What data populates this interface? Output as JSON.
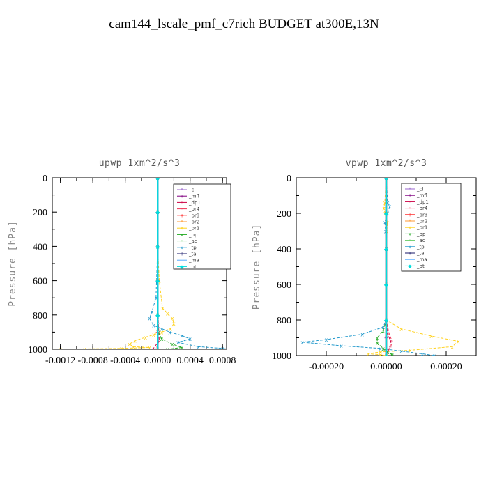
{
  "figure_title": "cam144_lscale_pmf_c7rich  BUDGET at300E,13N",
  "chart_data": [
    {
      "type": "line",
      "title": "upwp   1xm^2/s^3",
      "ylabel": "Pressure [hPa]",
      "xlabel": "",
      "ylim": [
        0,
        1000
      ],
      "y_inverted": true,
      "xlim": [
        -0.0013,
        0.00085
      ],
      "xticks": [
        -0.0012,
        -0.0008,
        -0.0004,
        0.0,
        0.0004,
        0.0008
      ],
      "xtick_labels": [
        "-0.0012",
        "-0.0008",
        "-0.0004",
        "0.0000",
        "0.0004",
        "0.0008"
      ],
      "yticks": [
        0,
        200,
        400,
        600,
        800,
        1000
      ],
      "ytick_labels": [
        "0",
        "200",
        "400",
        "600",
        "800",
        "1000"
      ],
      "legend": "top-right",
      "series": [
        {
          "name": "_cl",
          "color": "#9966cc",
          "marker": "*",
          "x": [
            0,
            0,
            0,
            0,
            0,
            0,
            0
          ],
          "y": [
            0,
            200,
            400,
            600,
            800,
            900,
            1000
          ]
        },
        {
          "name": "_mfl",
          "color": "#800080",
          "marker": "+",
          "x": [
            0,
            0,
            0,
            0,
            0,
            0,
            0
          ],
          "y": [
            0,
            200,
            400,
            600,
            800,
            900,
            1000
          ]
        },
        {
          "name": "_dp1",
          "color": "#cc0044",
          "marker": "o",
          "x": [
            0,
            0,
            0,
            0,
            0,
            2e-05,
            -6e-05
          ],
          "y": [
            0,
            200,
            400,
            600,
            800,
            950,
            1000
          ]
        },
        {
          "name": "_pr4",
          "color": "#ee3355",
          "marker": "o",
          "x": [
            0,
            0,
            0,
            0,
            1e-05,
            2e-05,
            -2e-05
          ],
          "y": [
            0,
            200,
            400,
            600,
            850,
            950,
            1000
          ]
        },
        {
          "name": "_pr3",
          "color": "#ff2222",
          "marker": "+",
          "x": [
            0,
            0,
            0,
            0,
            0,
            0,
            0
          ],
          "y": [
            0,
            200,
            400,
            600,
            800,
            900,
            1000
          ]
        },
        {
          "name": "_pr2",
          "color": "#ff9933",
          "marker": "*",
          "x": [
            0,
            0,
            0,
            0,
            0,
            0,
            0
          ],
          "y": [
            0,
            200,
            400,
            600,
            800,
            900,
            1000
          ]
        },
        {
          "name": "_pr1",
          "color": "#ffd21f",
          "marker": "x",
          "x": [
            0,
            0,
            0,
            2e-05,
            6e-05,
            0.00012,
            0.00018,
            0.0002,
            0.00016,
            5e-05,
            -5e-05,
            -0.00015,
            -0.00028,
            -0.00035,
            -0.0003,
            -0.0001,
            -0.00045,
            -0.0009,
            -0.0012
          ],
          "y": [
            0,
            200,
            400,
            600,
            760,
            790,
            820,
            850,
            880,
            900,
            915,
            930,
            950,
            970,
            985,
            990,
            995,
            998,
            1000
          ]
        },
        {
          "name": "_bp",
          "color": "#22aa22",
          "marker": "x",
          "x": [
            0,
            0,
            0,
            0,
            1e-05,
            5e-05,
            0.00018,
            0.0003,
            0.00012
          ],
          "y": [
            0,
            200,
            400,
            800,
            900,
            940,
            970,
            990,
            1000
          ]
        },
        {
          "name": "_ac",
          "color": "#66cc66",
          "marker": "o",
          "x": [
            0,
            0,
            0,
            0,
            0,
            0
          ],
          "y": [
            0,
            200,
            400,
            600,
            800,
            1000
          ]
        },
        {
          "name": "_tp",
          "color": "#2299cc",
          "marker": "x",
          "x": [
            0,
            0,
            0,
            -2e-05,
            -7e-05,
            -0.0001,
            -5e-05,
            5e-05,
            0.00015,
            0.0003,
            0.0004,
            0.00025,
            0.0005,
            0.0008,
            0.00082
          ],
          "y": [
            0,
            200,
            400,
            700,
            780,
            820,
            860,
            880,
            900,
            920,
            940,
            960,
            985,
            995,
            1000
          ]
        },
        {
          "name": "_ta",
          "color": "#1a1a6a",
          "marker": "+",
          "x": [
            0,
            0,
            0,
            0,
            0,
            0
          ],
          "y": [
            0,
            200,
            400,
            600,
            800,
            1000
          ]
        },
        {
          "name": "_ma",
          "color": "#55aaff",
          "marker": "-",
          "x": [
            0,
            0,
            0,
            0,
            0,
            0
          ],
          "y": [
            0,
            200,
            400,
            600,
            800,
            1000
          ]
        },
        {
          "name": "_bt",
          "color": "#00dddd",
          "marker": "D",
          "x": [
            0,
            0,
            0,
            0,
            0,
            0
          ],
          "y": [
            0,
            200,
            400,
            600,
            800,
            1000
          ]
        }
      ]
    },
    {
      "type": "line",
      "title": "vpwp   1xm^2/s^3",
      "ylabel": "Pressure [hPa]",
      "xlabel": "",
      "ylim": [
        0,
        1000
      ],
      "y_inverted": true,
      "xlim": [
        -0.0003,
        0.0003
      ],
      "xticks": [
        -0.0002,
        0.0,
        0.0002
      ],
      "xtick_labels": [
        "-0.00020",
        "0.00000",
        "0.00020"
      ],
      "yticks": [
        0,
        200,
        400,
        600,
        800,
        1000
      ],
      "ytick_labels": [
        "0",
        "200",
        "400",
        "600",
        "800",
        "1000"
      ],
      "legend": "top-right",
      "series": [
        {
          "name": "_cl",
          "color": "#9966cc",
          "marker": "*",
          "x": [
            0,
            0,
            0,
            0,
            0,
            0,
            0
          ],
          "y": [
            0,
            200,
            400,
            600,
            800,
            900,
            1000
          ]
        },
        {
          "name": "_mfl",
          "color": "#800080",
          "marker": "+",
          "x": [
            0,
            0,
            0,
            0,
            0,
            0,
            0
          ],
          "y": [
            0,
            200,
            400,
            600,
            800,
            900,
            1000
          ]
        },
        {
          "name": "_dp1",
          "color": "#cc0044",
          "marker": "o",
          "x": [
            0,
            0,
            0,
            0,
            5e-06,
            1.5e-05,
            1.2e-05,
            5e-06,
            0
          ],
          "y": [
            0,
            200,
            400,
            800,
            880,
            920,
            950,
            980,
            1000
          ]
        },
        {
          "name": "_pr4",
          "color": "#ee3355",
          "marker": "o",
          "x": [
            0,
            0,
            0,
            0,
            1e-05,
            2e-05,
            1.5e-05,
            5e-06,
            0
          ],
          "y": [
            0,
            200,
            400,
            800,
            880,
            920,
            950,
            980,
            1000
          ]
        },
        {
          "name": "_pr3",
          "color": "#ff2222",
          "marker": "+",
          "x": [
            0,
            0,
            0,
            0,
            0,
            0
          ],
          "y": [
            0,
            200,
            400,
            600,
            800,
            1000
          ]
        },
        {
          "name": "_pr2",
          "color": "#ff9933",
          "marker": "*",
          "x": [
            0,
            0,
            0,
            0,
            0,
            0
          ],
          "y": [
            0,
            200,
            400,
            600,
            800,
            1000
          ]
        },
        {
          "name": "_pr1",
          "color": "#ffd21f",
          "marker": "x",
          "x": [
            0,
            -5e-06,
            -8e-06,
            -4e-06,
            4e-06,
            2e-06,
            0,
            0,
            5e-05,
            0.00015,
            0.00024,
            0.00022,
            8e-05,
            -2e-05,
            -6e-05,
            -2e-05,
            0
          ],
          "y": [
            0,
            140,
            170,
            200,
            250,
            300,
            400,
            800,
            850,
            890,
            920,
            950,
            970,
            980,
            990,
            995,
            1000
          ]
        },
        {
          "name": "_bp",
          "color": "#22aa22",
          "marker": "x",
          "x": [
            0,
            0,
            0,
            0,
            -1e-05,
            -3e-05,
            -3e-05,
            -1e-05,
            5e-06,
            2e-05,
            2e-05
          ],
          "y": [
            0,
            200,
            400,
            800,
            860,
            900,
            930,
            960,
            980,
            995,
            1000
          ]
        },
        {
          "name": "_ac",
          "color": "#66cc66",
          "marker": "o",
          "x": [
            0,
            0,
            0,
            0,
            0,
            0
          ],
          "y": [
            0,
            200,
            400,
            600,
            800,
            1000
          ]
        },
        {
          "name": "_tp",
          "color": "#2299cc",
          "marker": "x",
          "x": [
            0,
            5e-06,
            1.2e-05,
            5e-06,
            -5e-06,
            -2e-06,
            0,
            0,
            -1e-05,
            -8e-05,
            -0.0002,
            -0.00028,
            -0.00015,
            -2e-05,
            5e-05,
            0.00012,
            0.00016
          ],
          "y": [
            0,
            140,
            160,
            200,
            250,
            300,
            400,
            800,
            840,
            880,
            910,
            925,
            945,
            960,
            975,
            990,
            1000
          ]
        },
        {
          "name": "_ta",
          "color": "#1a1a6a",
          "marker": "+",
          "x": [
            0,
            0,
            0,
            0,
            0,
            0
          ],
          "y": [
            0,
            200,
            400,
            600,
            800,
            1000
          ]
        },
        {
          "name": "_ma",
          "color": "#55aaff",
          "marker": "-",
          "x": [
            0,
            0,
            0,
            0,
            0,
            0
          ],
          "y": [
            0,
            200,
            400,
            600,
            800,
            1000
          ]
        },
        {
          "name": "_bt",
          "color": "#00dddd",
          "marker": "D",
          "x": [
            0,
            0,
            0,
            0,
            0,
            0
          ],
          "y": [
            0,
            200,
            400,
            600,
            800,
            1000
          ]
        }
      ]
    }
  ]
}
